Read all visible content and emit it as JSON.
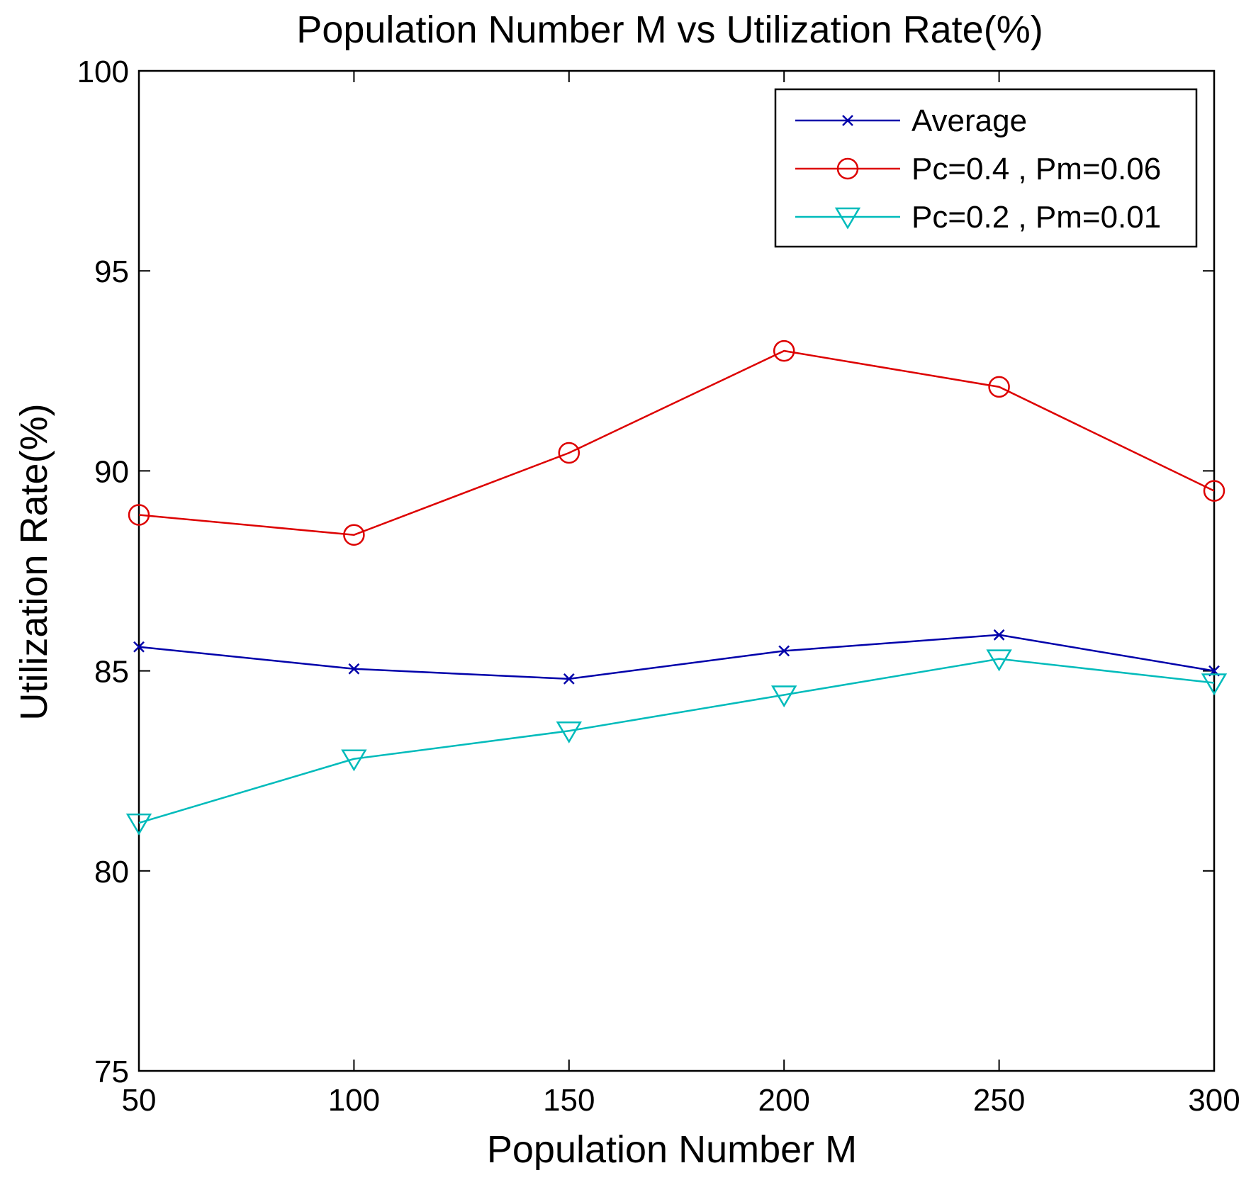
{
  "chart_data": {
    "type": "line",
    "title": "Population Number M vs Utilization Rate(%)",
    "xlabel": "Population Number M",
    "ylabel": "Utilization Rate(%)",
    "x": [
      50,
      100,
      150,
      200,
      250,
      300
    ],
    "xlim": [
      50,
      300
    ],
    "ylim": [
      75,
      100
    ],
    "xticks": [
      "50",
      "100",
      "150",
      "200",
      "250",
      "300"
    ],
    "yticks": [
      "75",
      "80",
      "85",
      "90",
      "95",
      "100"
    ],
    "grid": false,
    "legend_position": "top-right",
    "series": [
      {
        "name": "Average",
        "color": "#0000aa",
        "marker": "x",
        "values": [
          85.6,
          85.05,
          84.8,
          85.5,
          85.9,
          85.0
        ]
      },
      {
        "name": "Pc=0.4 , Pm=0.06",
        "color": "#dd0000",
        "marker": "circle",
        "values": [
          88.9,
          88.4,
          90.45,
          93.0,
          92.1,
          89.5
        ]
      },
      {
        "name": "Pc=0.2 , Pm=0.01",
        "color": "#00bbbb",
        "marker": "triangle-down",
        "values": [
          81.2,
          82.8,
          83.5,
          84.4,
          85.3,
          84.7
        ]
      }
    ]
  }
}
